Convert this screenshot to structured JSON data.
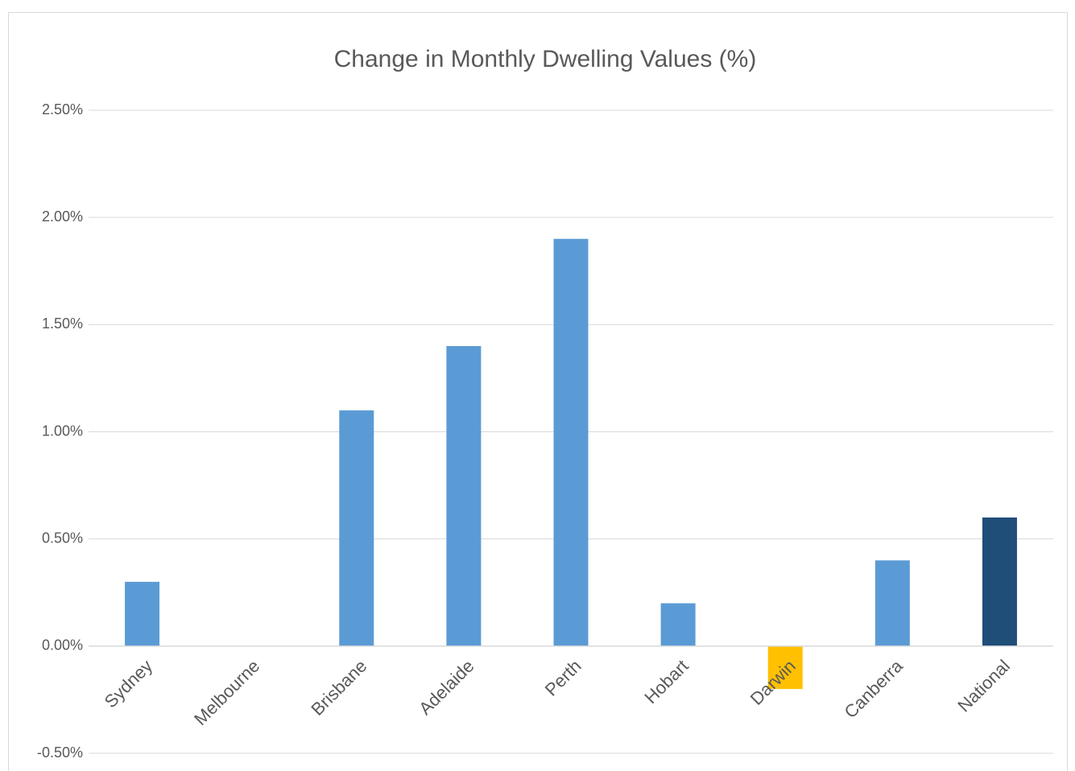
{
  "chart_data": {
    "type": "bar",
    "title": "Change in Monthly Dwelling Values (%)",
    "categories": [
      "Sydney",
      "Melbourne",
      "Brisbane",
      "Adelaide",
      "Perth",
      "Hobart",
      "Darwin",
      "Canberra",
      "National"
    ],
    "values": [
      0.3,
      0,
      1.1,
      1.4,
      1.9,
      0.2,
      -0.2,
      0.4,
      0.6
    ],
    "colors": [
      "#5b9bd5",
      "#5b9bd5",
      "#5b9bd5",
      "#5b9bd5",
      "#5b9bd5",
      "#5b9bd5",
      "#ffc000",
      "#5b9bd5",
      "#1f4e79"
    ],
    "ylim": [
      -0.5,
      2.5
    ],
    "yticks": [
      {
        "value": -0.5,
        "label": "-0.50%"
      },
      {
        "value": 0,
        "label": "0.00%"
      },
      {
        "value": 0.5,
        "label": "0.50%"
      },
      {
        "value": 1,
        "label": "1.00%"
      },
      {
        "value": 1.5,
        "label": "1.50%"
      },
      {
        "value": 2,
        "label": "2.00%"
      },
      {
        "value": 2.5,
        "label": "2.50%"
      }
    ],
    "grid": true
  }
}
